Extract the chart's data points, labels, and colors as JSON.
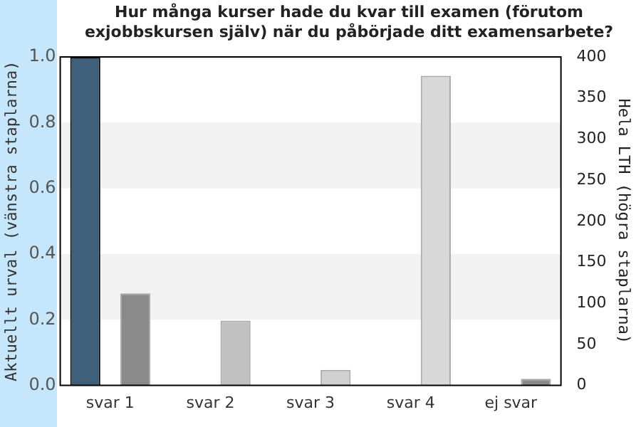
{
  "chart_data": {
    "type": "bar",
    "title": "Hur många kurser hade du kvar till examen (förutom exjobbskursen själv) när du påbörjade ditt examensarbete?",
    "ylabel": "Aktuellt urval (vänstra staplarna)",
    "y2label": "Hela LTH (högra staplarna)",
    "categories": [
      "svar 1",
      "svar 2",
      "svar 3",
      "svar 4",
      "ej svar"
    ],
    "series": [
      {
        "color": "#3f5f7a",
        "values": [
          1.0,
          0,
          0,
          0,
          0
        ]
      },
      {
        "colors": [
          "#8a8a8a",
          "#c0c0c0",
          "#d0d0d0",
          "#d8d8d8",
          "#8a8a8a"
        ],
        "axis": "y2",
        "values": [
          112,
          79,
          19,
          377,
          8
        ]
      }
    ],
    "ylim": [
      0,
      1
    ],
    "yticks": [
      {
        "value": 0,
        "label": "0.0"
      },
      0.2,
      0.4,
      0.6,
      0.8,
      {
        "value": 1,
        "label": "1.0"
      }
    ],
    "y2lim": [
      0,
      400
    ],
    "y2ticks": [
      0,
      50,
      100,
      150,
      200,
      250,
      300,
      350,
      400
    ],
    "bands": [
      {
        "axis": "y",
        "from": 0.2,
        "to": 0.4,
        "color": "#f2f2f2"
      },
      {
        "axis": "y",
        "from": 0.6,
        "to": 0.8,
        "color": "#f2f2f2"
      }
    ],
    "legend": false
  }
}
